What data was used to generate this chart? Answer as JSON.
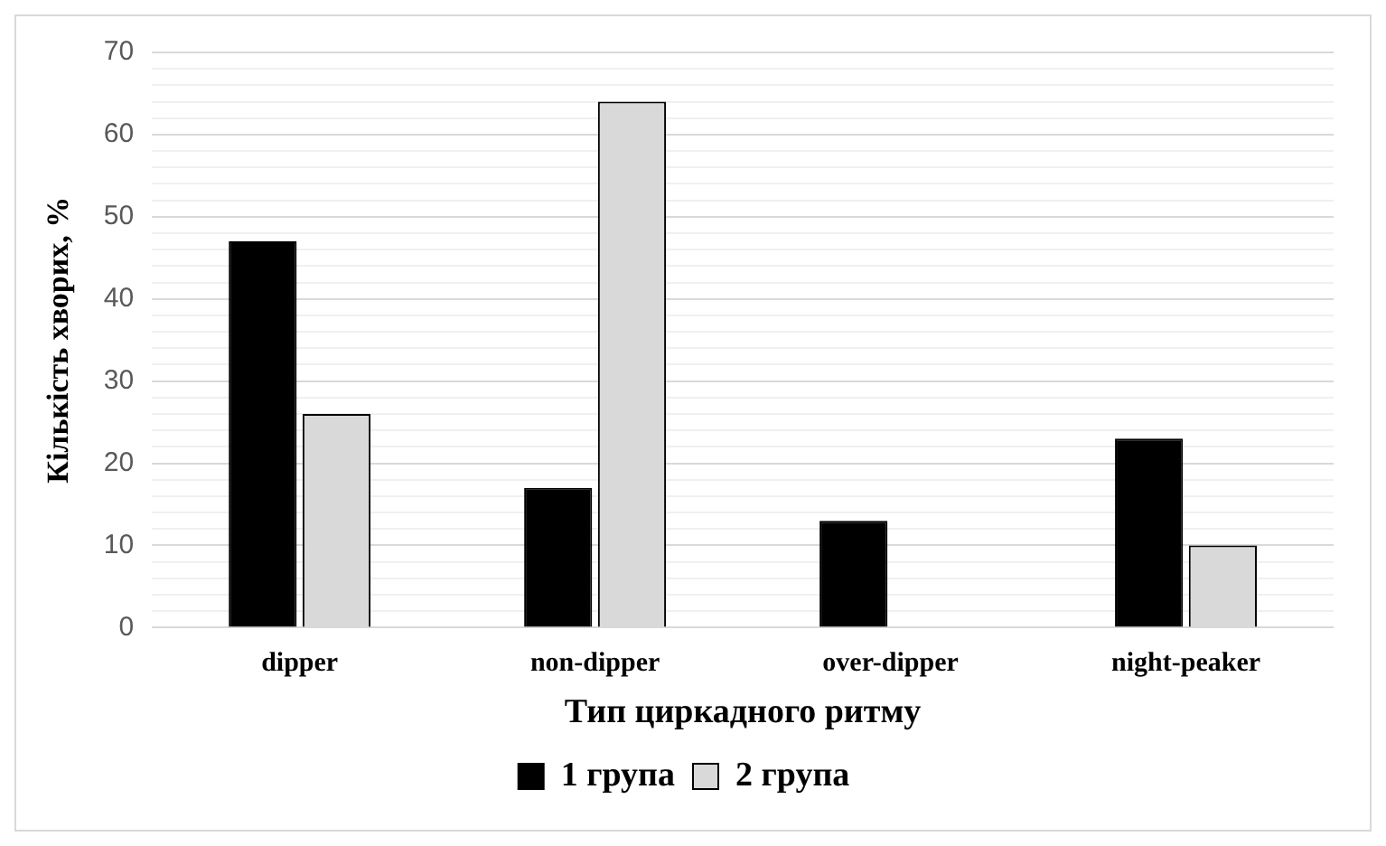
{
  "chart_data": {
    "type": "bar",
    "xlabel": "Тип циркадного ритму",
    "ylabel": "Кількість хворих, %",
    "categories": [
      "dipper",
      "non-dipper",
      "over-dipper",
      "night-peaker"
    ],
    "series": [
      {
        "name": "1 група",
        "color": "#000000",
        "values": [
          47,
          17,
          13,
          23
        ]
      },
      {
        "name": "2 група",
        "color": "#d9d9d9",
        "values": [
          26,
          64,
          0,
          10
        ]
      }
    ],
    "ylim": [
      0,
      70
    ],
    "yticks": [
      0,
      {
        "value": 2,
        "label": null
      },
      {
        "value": 4,
        "label": null
      },
      {
        "value": 6,
        "label": null
      },
      {
        "value": 8,
        "label": null
      },
      10,
      {
        "value": 12,
        "label": null
      },
      {
        "value": 14,
        "label": null
      },
      {
        "value": 16,
        "label": null
      },
      {
        "value": 18,
        "label": null
      },
      20,
      {
        "value": 22,
        "label": null
      },
      {
        "value": 24,
        "label": null
      },
      {
        "value": 26,
        "label": null
      },
      {
        "value": 28,
        "label": null
      },
      30,
      {
        "value": 32,
        "label": null
      },
      {
        "value": 34,
        "label": null
      },
      {
        "value": 36,
        "label": null
      },
      {
        "value": 38,
        "label": null
      },
      40,
      {
        "value": 42,
        "label": null
      },
      {
        "value": 44,
        "label": null
      },
      {
        "value": 46,
        "label": null
      },
      {
        "value": 48,
        "label": null
      },
      50,
      {
        "value": 52,
        "label": null
      },
      {
        "value": 54,
        "label": null
      },
      {
        "value": 56,
        "label": null
      },
      {
        "value": 58,
        "label": null
      },
      60,
      {
        "value": 62,
        "label": null
      },
      {
        "value": 64,
        "label": null
      },
      {
        "value": 66,
        "label": null
      },
      {
        "value": 68,
        "label": null
      },
      70
    ],
    "grid": "y",
    "legend": "bottom"
  }
}
